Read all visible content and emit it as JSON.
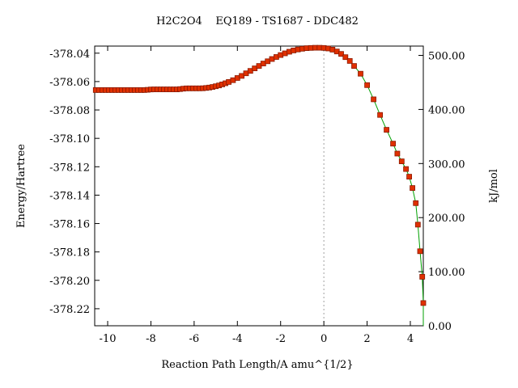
{
  "colors": {
    "curve": "#00a000",
    "marker_fill": "#e03000",
    "marker_stroke": "#8b1a00",
    "ts_line": "#a0a0a0",
    "axis": "#000000"
  },
  "chart_data": {
    "type": "line",
    "title": "H2C2O4    EQ189 - TS1687 - DDC482",
    "xlabel": "Reaction Path Length/A amu^{1/2}",
    "ylabel": "Energy/Hartree",
    "y2label": "kJ/mol",
    "xlim": [
      -10.6,
      4.6
    ],
    "ylim": [
      -378.232,
      -378.035
    ],
    "y2lim": [
      0,
      517.2
    ],
    "x_ticks": [
      -10,
      -8,
      -6,
      -4,
      -2,
      0,
      2,
      4
    ],
    "x_tick_labels": [
      "-10",
      "-8",
      "-6",
      "-4",
      "-2",
      "0",
      "2",
      "4"
    ],
    "y_ticks": [
      -378.04,
      -378.06,
      -378.08,
      -378.1,
      -378.12,
      -378.14,
      -378.16,
      -378.18,
      -378.2,
      -378.22
    ],
    "y_tick_labels": [
      "-378.04",
      "-378.06",
      "-378.08",
      "-378.10",
      "-378.12",
      "-378.14",
      "-378.16",
      "-378.18",
      "-378.20",
      "-378.22"
    ],
    "y2_ticks": [
      0,
      100,
      200,
      300,
      400,
      500
    ],
    "y2_tick_labels": [
      "0.00",
      "100.00",
      "200.00",
      "300.00",
      "400.00",
      "500.00"
    ],
    "ts_x": 0,
    "grid": false,
    "series": [
      {
        "x": [
          -10.55,
          -10.4,
          -10.25,
          -10.1,
          -9.95,
          -9.8,
          -9.65,
          -9.5,
          -9.35,
          -9.2,
          -9.05,
          -8.9,
          -8.75,
          -8.6,
          -8.45,
          -8.3,
          -8.15,
          -8.0,
          -7.85,
          -7.7,
          -7.55,
          -7.4,
          -7.25,
          -7.1,
          -6.95,
          -6.8,
          -6.65,
          -6.5,
          -6.35,
          -6.2,
          -6.05,
          -5.9,
          -5.75,
          -5.6,
          -5.45,
          -5.3,
          -5.15,
          -5.0,
          -4.85,
          -4.7,
          -4.55,
          -4.4,
          -4.2,
          -4.0,
          -3.8,
          -3.6,
          -3.4,
          -3.2,
          -3.0,
          -2.8,
          -2.6,
          -2.4,
          -2.2,
          -2.0,
          -1.8,
          -1.6,
          -1.4,
          -1.2,
          -1.0,
          -0.8,
          -0.6,
          -0.4,
          -0.2,
          0.0,
          0.2,
          0.4,
          0.6,
          0.8,
          1.0,
          1.2,
          1.4,
          1.7,
          2.0,
          2.3,
          2.6,
          2.9,
          3.2,
          3.4,
          3.6,
          3.8,
          3.95,
          4.1,
          4.25,
          4.35,
          4.45,
          4.55
        ],
        "y": [
          -378.066,
          -378.066,
          -378.066,
          -378.066,
          -378.066,
          -378.066,
          -378.066,
          -378.066,
          -378.066,
          -378.066,
          -378.066,
          -378.066,
          -378.066,
          -378.066,
          -378.066,
          -378.066,
          -378.0658,
          -378.0656,
          -378.0655,
          -378.0655,
          -378.0655,
          -378.0655,
          -378.0655,
          -378.0655,
          -378.0655,
          -378.0655,
          -378.0653,
          -378.065,
          -378.0648,
          -378.0648,
          -378.0648,
          -378.0648,
          -378.0648,
          -378.0647,
          -378.0645,
          -378.0642,
          -378.0638,
          -378.0633,
          -378.0627,
          -378.062,
          -378.0612,
          -378.0603,
          -378.059,
          -378.0575,
          -378.056,
          -378.0542,
          -378.0525,
          -378.0507,
          -378.049,
          -378.0473,
          -378.0457,
          -378.0441,
          -378.0427,
          -378.0413,
          -378.0401,
          -378.039,
          -378.0381,
          -378.0374,
          -378.0369,
          -378.0365,
          -378.0363,
          -378.0362,
          -378.0362,
          -378.0363,
          -378.0367,
          -378.0375,
          -378.0388,
          -378.0405,
          -378.0428,
          -378.0455,
          -378.049,
          -378.0545,
          -378.0625,
          -378.0725,
          -378.0835,
          -378.094,
          -378.1037,
          -378.1107,
          -378.1162,
          -378.1216,
          -378.127,
          -378.135,
          -378.1456,
          -378.1608,
          -378.1795,
          -378.1975
        ]
      }
    ],
    "tail_point": {
      "x": 4.6,
      "y": -378.216
    }
  }
}
